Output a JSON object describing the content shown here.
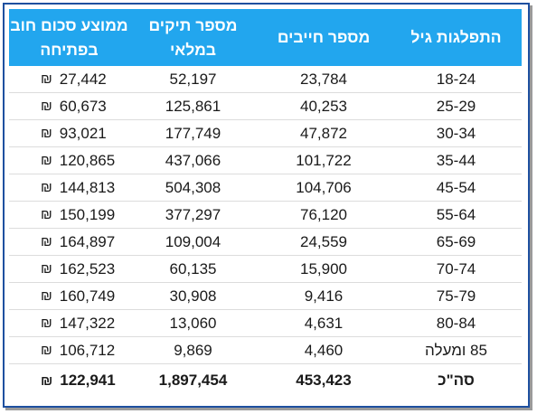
{
  "table": {
    "headers": [
      "ממוצע סכום חוב בפתיחה",
      "מספר תיקים במלאי",
      "מספר חייבים",
      "התפלגות גיל"
    ],
    "currency_symbol": "₪",
    "rows": [
      {
        "age": "18-24",
        "debtors": "23,784",
        "files": "52,197",
        "avg_debt": "27,442"
      },
      {
        "age": "25-29",
        "debtors": "40,253",
        "files": "125,861",
        "avg_debt": "60,673"
      },
      {
        "age": "30-34",
        "debtors": "47,872",
        "files": "177,749",
        "avg_debt": "93,021"
      },
      {
        "age": "35-44",
        "debtors": "101,722",
        "files": "437,066",
        "avg_debt": "120,865"
      },
      {
        "age": "45-54",
        "debtors": "104,706",
        "files": "504,308",
        "avg_debt": "144,813"
      },
      {
        "age": "55-64",
        "debtors": "76,120",
        "files": "377,297",
        "avg_debt": "150,199"
      },
      {
        "age": "65-69",
        "debtors": "24,559",
        "files": "109,004",
        "avg_debt": "164,897"
      },
      {
        "age": "70-74",
        "debtors": "15,900",
        "files": "60,135",
        "avg_debt": "162,523"
      },
      {
        "age": "75-79",
        "debtors": "9,416",
        "files": "30,908",
        "avg_debt": "160,749"
      },
      {
        "age": "80-84",
        "debtors": "4,631",
        "files": "13,060",
        "avg_debt": "147,322"
      },
      {
        "age": "85 ומעלה",
        "debtors": "4,460",
        "files": "9,869",
        "avg_debt": "106,712"
      }
    ],
    "total": {
      "age": "סה\"כ",
      "debtors": "453,423",
      "files": "1,897,454",
      "avg_debt": "122,941"
    }
  },
  "colors": {
    "header_background": "#22a6ee",
    "header_text": "#ffffff",
    "frame_border": "#1e50a0"
  }
}
